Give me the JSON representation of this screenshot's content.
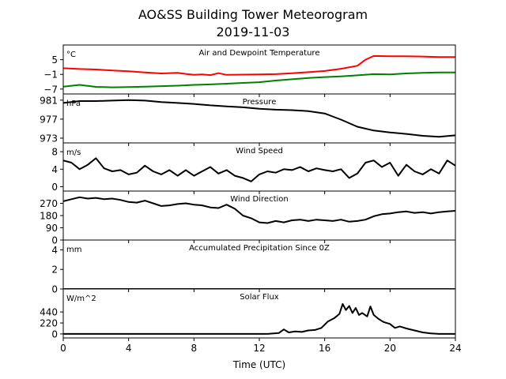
{
  "figure": {
    "title_line1": "AO&SS Building Tower Meteorogram",
    "title_line2": "2019-11-03",
    "xlabel": "Time (UTC)",
    "xticks": [
      0,
      4,
      8,
      12,
      16,
      20,
      24
    ],
    "xlim": [
      0,
      24
    ]
  },
  "chart_data": [
    {
      "type": "line",
      "title": "Air and Dewpoint Temperature",
      "unit_label": "°C",
      "ylim": [
        -9,
        11
      ],
      "yticks": [
        5,
        -1,
        -7
      ],
      "ytick_labels": [
        "5",
        "−1",
        "−7"
      ],
      "grid": false,
      "series": [
        {
          "color": "#ff0000",
          "x": [
            0,
            1,
            2,
            3,
            4,
            5,
            6,
            7,
            7.5,
            8,
            8.5,
            9,
            9.5,
            10,
            11,
            12,
            13,
            14,
            15,
            16,
            17,
            18,
            18.5,
            19,
            20,
            21,
            22,
            23,
            24
          ],
          "y": [
            1.5,
            1.2,
            1.0,
            0.6,
            0.3,
            -0.2,
            -0.6,
            -0.4,
            -0.8,
            -1.2,
            -1.0,
            -1.3,
            -0.5,
            -1.2,
            -1.1,
            -1.0,
            -0.9,
            -0.5,
            -0.1,
            0.4,
            1.3,
            2.5,
            5.0,
            6.5,
            6.4,
            6.4,
            6.3,
            6.1,
            6.1
          ]
        },
        {
          "color": "#008000",
          "x": [
            0,
            1,
            2,
            3,
            4,
            5,
            6,
            7,
            8,
            9,
            10,
            11,
            12,
            13,
            14,
            15,
            16,
            17,
            18,
            19,
            20,
            21,
            22,
            23,
            24
          ],
          "y": [
            -6.0,
            -5.3,
            -6.1,
            -6.3,
            -6.2,
            -6.0,
            -5.8,
            -5.6,
            -5.3,
            -5.1,
            -4.8,
            -4.5,
            -4.2,
            -3.5,
            -3.0,
            -2.5,
            -2.1,
            -1.8,
            -1.4,
            -0.9,
            -1.0,
            -0.6,
            -0.4,
            -0.2,
            -0.2
          ]
        }
      ]
    },
    {
      "type": "line",
      "title": "Pressure",
      "unit_label": "hPa",
      "ylim": [
        972,
        982.3
      ],
      "yticks": [
        981,
        977,
        973
      ],
      "ytick_labels": [
        "981",
        "977",
        "973"
      ],
      "grid": false,
      "series": [
        {
          "color": "#000000",
          "x": [
            0,
            1,
            2,
            3,
            4,
            5,
            6,
            7,
            8,
            9,
            10,
            11,
            12,
            13,
            14,
            15,
            16,
            17,
            18,
            19,
            20,
            21,
            22,
            23,
            24
          ],
          "y": [
            980.4,
            980.8,
            980.8,
            980.9,
            981.0,
            980.9,
            980.6,
            980.4,
            980.2,
            979.9,
            979.7,
            979.5,
            979.2,
            979.0,
            978.9,
            978.7,
            978.2,
            976.9,
            975.4,
            974.6,
            974.2,
            973.9,
            973.5,
            973.3,
            973.6
          ]
        }
      ]
    },
    {
      "type": "line",
      "title": "Wind Speed",
      "unit_label": "m/s",
      "ylim": [
        -1,
        10
      ],
      "yticks": [
        8,
        4,
        0
      ],
      "ytick_labels": [
        "8",
        "4",
        "0"
      ],
      "grid": false,
      "series": [
        {
          "color": "#000000",
          "x": [
            0,
            0.5,
            1,
            1.5,
            2,
            2.5,
            3,
            3.5,
            4,
            4.5,
            5,
            5.5,
            6,
            6.5,
            7,
            7.5,
            8,
            8.5,
            9,
            9.5,
            10,
            10.5,
            11,
            11.5,
            12,
            12.5,
            13,
            13.5,
            14,
            14.5,
            15,
            15.5,
            16,
            16.5,
            17,
            17.5,
            18,
            18.5,
            19,
            19.5,
            20,
            20.5,
            21,
            21.5,
            22,
            22.5,
            23,
            23.5,
            24
          ],
          "y": [
            6.0,
            5.5,
            4.0,
            5.0,
            6.5,
            4.2,
            3.5,
            3.8,
            2.8,
            3.2,
            4.8,
            3.5,
            2.8,
            3.8,
            2.5,
            3.8,
            2.5,
            3.5,
            4.5,
            3.0,
            3.8,
            2.5,
            2.0,
            1.2,
            2.8,
            3.5,
            3.2,
            4.0,
            3.8,
            4.5,
            3.5,
            4.2,
            3.8,
            3.5,
            4.0,
            2.0,
            3.0,
            5.5,
            6.0,
            4.5,
            5.5,
            2.5,
            5.0,
            3.5,
            2.8,
            4.0,
            3.0,
            6.0,
            4.8
          ]
        }
      ]
    },
    {
      "type": "line",
      "title": "Wind Direction",
      "unit_label": "",
      "ylim": [
        0,
        360
      ],
      "yticks": [
        270,
        180,
        90,
        0
      ],
      "ytick_labels": [
        "270",
        "180",
        "90",
        "0"
      ],
      "grid": false,
      "series": [
        {
          "color": "#000000",
          "x": [
            0,
            0.5,
            1,
            1.5,
            2,
            2.5,
            3,
            3.5,
            4,
            4.5,
            5,
            5.5,
            6,
            6.5,
            7,
            7.5,
            8,
            8.5,
            9,
            9.5,
            10,
            10.5,
            11,
            11.5,
            12,
            12.5,
            13,
            13.5,
            14,
            14.5,
            15,
            15.5,
            16,
            16.5,
            17,
            17.5,
            18,
            18.5,
            19,
            19.5,
            20,
            20.5,
            21,
            21.5,
            22,
            22.5,
            23,
            23.5,
            24
          ],
          "y": [
            285,
            300,
            315,
            305,
            310,
            300,
            305,
            295,
            280,
            275,
            290,
            270,
            250,
            255,
            265,
            270,
            260,
            255,
            240,
            235,
            260,
            230,
            180,
            160,
            130,
            125,
            140,
            130,
            145,
            150,
            140,
            150,
            145,
            140,
            150,
            135,
            140,
            150,
            175,
            190,
            195,
            205,
            210,
            200,
            205,
            195,
            205,
            210,
            215
          ]
        }
      ]
    },
    {
      "type": "line",
      "title": "Accumulated Precipitation Since 0Z",
      "unit_label": "mm",
      "ylim": [
        0,
        5
      ],
      "yticks": [
        4,
        2,
        0
      ],
      "ytick_labels": [
        "4",
        "2",
        "0"
      ],
      "grid": false,
      "series": [
        {
          "color": "#000000",
          "x": [
            0,
            24
          ],
          "y": [
            0,
            0
          ]
        }
      ]
    },
    {
      "type": "line",
      "title": "Solar Flux",
      "unit_label": "W/m^2",
      "ylim": [
        -80,
        900
      ],
      "yticks": [
        440,
        220,
        0
      ],
      "ytick_labels": [
        "440",
        "220",
        "0"
      ],
      "grid": false,
      "series": [
        {
          "color": "#000000",
          "x": [
            0,
            12.5,
            13.2,
            13.5,
            13.8,
            14.2,
            14.6,
            15.0,
            15.4,
            15.8,
            16.2,
            16.6,
            16.9,
            17.1,
            17.3,
            17.5,
            17.7,
            17.9,
            18.1,
            18.3,
            18.6,
            18.8,
            19.0,
            19.3,
            19.6,
            20.0,
            20.3,
            20.6,
            21.0,
            21.5,
            22.0,
            22.5,
            23.0,
            23.5,
            24
          ],
          "y": [
            0,
            0,
            20,
            90,
            30,
            50,
            40,
            70,
            80,
            120,
            250,
            320,
            400,
            600,
            480,
            560,
            420,
            520,
            380,
            420,
            350,
            550,
            380,
            300,
            240,
            200,
            120,
            150,
            110,
            70,
            30,
            10,
            0,
            0,
            0
          ]
        }
      ]
    }
  ]
}
